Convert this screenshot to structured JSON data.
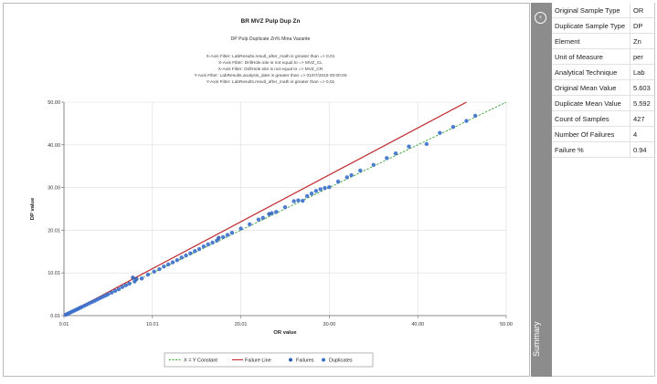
{
  "chart_data": {
    "type": "scatter",
    "title": "BR MVZ Pulp Dup Zn",
    "subtitle": "DP Pulp Duplicate Zn%  Mina Vazante",
    "filters": [
      "X-Axis Filter: LabResults.result_after_math is greater than => 0,01",
      "X-Axis Filter: DrillHole.site is not equal to => MVZ_CL",
      "X-Axis Filter: DrillHole.site is not equal to => MVZ_CR",
      "Y-Axis Filter: LabResults.analysis_date is greater than => 01/07/2019 00:00:00",
      "Y-Axis Filter: LabResults.result_after_math is greater than => 0,01"
    ],
    "xlabel": "OR value",
    "ylabel": "DP value",
    "xlim": [
      0.01,
      50.0
    ],
    "ylim": [
      0.01,
      50.0
    ],
    "x_ticks": [
      "0.01",
      "10.01",
      "20.01",
      "30.00",
      "40.00",
      "50.00"
    ],
    "y_ticks": [
      "0.01",
      "10.01",
      "20.01",
      "30.00",
      "40.00",
      "50.00"
    ],
    "grid": true,
    "legend_position": "bottom",
    "lines": [
      {
        "name": "X = Y Constant",
        "color": "#3aa33a",
        "style": "dashed",
        "x": [
          0.01,
          50.0
        ],
        "y": [
          0.01,
          50.0
        ]
      },
      {
        "name": "Failure Line",
        "color": "#c0282d",
        "style": "solid",
        "x": [
          0.01,
          45.5
        ],
        "y": [
          0.01,
          50.0
        ]
      }
    ],
    "series": [
      {
        "name": "Failures",
        "color": "#2e5fb5",
        "points": [
          [
            7.8,
            8.9
          ],
          [
            8.2,
            8.6
          ],
          [
            17.5,
            18.2
          ],
          [
            23.2,
            23.8
          ]
        ]
      },
      {
        "name": "Duplicates",
        "color": "#3b6fcc",
        "points": [
          [
            0.2,
            0.2
          ],
          [
            0.4,
            0.4
          ],
          [
            0.6,
            0.6
          ],
          [
            0.8,
            0.8
          ],
          [
            1.0,
            1.0
          ],
          [
            1.2,
            1.2
          ],
          [
            1.4,
            1.4
          ],
          [
            1.6,
            1.6
          ],
          [
            1.8,
            1.8
          ],
          [
            2.0,
            2.0
          ],
          [
            2.3,
            2.3
          ],
          [
            2.6,
            2.6
          ],
          [
            2.9,
            2.9
          ],
          [
            3.2,
            3.2
          ],
          [
            3.5,
            3.5
          ],
          [
            3.8,
            3.8
          ],
          [
            4.1,
            4.1
          ],
          [
            4.4,
            4.4
          ],
          [
            4.7,
            4.7
          ],
          [
            5.0,
            5.0
          ],
          [
            5.4,
            5.4
          ],
          [
            5.8,
            5.8
          ],
          [
            6.2,
            6.2
          ],
          [
            6.6,
            6.7
          ],
          [
            7.0,
            7.1
          ],
          [
            7.4,
            7.5
          ],
          [
            8.0,
            8.0
          ],
          [
            8.8,
            8.7
          ],
          [
            9.5,
            9.6
          ],
          [
            10.2,
            10.3
          ],
          [
            10.8,
            10.9
          ],
          [
            11.3,
            11.5
          ],
          [
            11.8,
            12.0
          ],
          [
            12.3,
            12.5
          ],
          [
            12.8,
            13.0
          ],
          [
            13.3,
            13.6
          ],
          [
            13.8,
            14.1
          ],
          [
            14.3,
            14.6
          ],
          [
            14.8,
            15.1
          ],
          [
            15.3,
            15.6
          ],
          [
            15.8,
            16.2
          ],
          [
            16.3,
            16.7
          ],
          [
            16.8,
            17.1
          ],
          [
            17.3,
            17.6
          ],
          [
            18.0,
            18.4
          ],
          [
            18.5,
            18.9
          ],
          [
            19.0,
            19.4
          ],
          [
            20.0,
            20.4
          ],
          [
            21.0,
            21.4
          ],
          [
            22.0,
            22.5
          ],
          [
            22.5,
            22.9
          ],
          [
            23.5,
            24.0
          ],
          [
            25.0,
            25.4
          ],
          [
            26.0,
            26.8
          ],
          [
            26.5,
            27.0
          ],
          [
            27.0,
            26.9
          ],
          [
            27.5,
            28.0
          ],
          [
            28.0,
            28.6
          ],
          [
            28.5,
            29.2
          ],
          [
            29.0,
            29.6
          ],
          [
            29.5,
            29.9
          ],
          [
            30.0,
            30.1
          ],
          [
            31.0,
            31.4
          ],
          [
            32.0,
            32.4
          ],
          [
            33.5,
            34.0
          ],
          [
            35.0,
            35.3
          ],
          [
            36.5,
            36.9
          ],
          [
            37.5,
            38.0
          ],
          [
            39.0,
            39.6
          ],
          [
            41.0,
            40.2
          ],
          [
            42.5,
            42.8
          ],
          [
            44.0,
            44.2
          ],
          [
            45.5,
            45.6
          ],
          [
            46.5,
            46.8
          ],
          [
            32.5,
            32.9
          ],
          [
            24.0,
            24.3
          ]
        ]
      }
    ]
  },
  "summary": {
    "label": "Summary",
    "rows": [
      {
        "key": "Original Sample Type",
        "value": "OR"
      },
      {
        "key": "Duplicate Sample Type",
        "value": "DP"
      },
      {
        "key": "Element",
        "value": "Zn"
      },
      {
        "key": "Unit of Measure",
        "value": "per"
      },
      {
        "key": "Analytical Technique",
        "value": "Lab"
      },
      {
        "key": "Original Mean Value",
        "value": "5.603"
      },
      {
        "key": "Duplicate Mean Value",
        "value": "5.592"
      },
      {
        "key": "Count of Samples",
        "value": "427"
      },
      {
        "key": "Number Of Failures",
        "value": "4"
      },
      {
        "key": "Failure %",
        "value": "0.94"
      }
    ]
  },
  "icons": {
    "collapse": "chevron-left-circle-icon"
  },
  "colors": {
    "strip": "#8c8c8c",
    "xy_line": "#3aa33a",
    "failure_line": "#c0282d",
    "points": "#3b6fcc"
  }
}
